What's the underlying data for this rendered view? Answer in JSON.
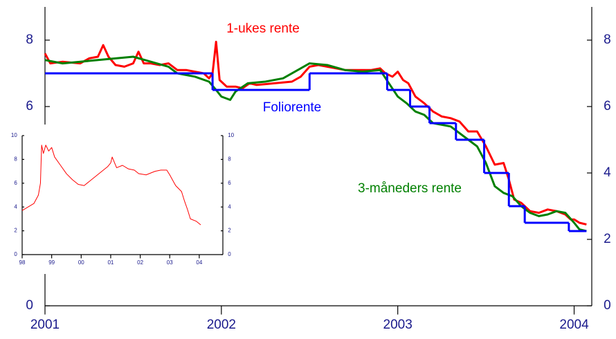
{
  "chart_data": [
    {
      "type": "line",
      "xlim": [
        2001,
        2004.1
      ],
      "ylim": [
        0,
        9
      ],
      "xticks": [
        2001,
        2002,
        2003,
        2004
      ],
      "yticks": [
        0,
        2,
        4,
        6,
        8
      ],
      "right_axis": true,
      "series": [
        {
          "name": "1-ukes rente",
          "color": "#ff0000",
          "x": [
            2001.0,
            2001.03,
            2001.1,
            2001.2,
            2001.25,
            2001.3,
            2001.33,
            2001.36,
            2001.4,
            2001.45,
            2001.5,
            2001.53,
            2001.56,
            2001.6,
            2001.65,
            2001.7,
            2001.75,
            2001.8,
            2001.85,
            2001.9,
            2001.93,
            2001.95,
            2001.97,
            2001.99,
            2002.03,
            2002.08,
            2002.12,
            2002.16,
            2002.2,
            2002.3,
            2002.4,
            2002.45,
            2002.5,
            2002.55,
            2002.6,
            2002.7,
            2002.8,
            2002.85,
            2002.9,
            2002.93,
            2002.97,
            2003.0,
            2003.03,
            2003.06,
            2003.1,
            2003.15,
            2003.2,
            2003.25,
            2003.3,
            2003.35,
            2003.4,
            2003.45,
            2003.5,
            2003.55,
            2003.6,
            2003.63,
            2003.66,
            2003.7,
            2003.75,
            2003.8,
            2003.85,
            2003.9,
            2003.95,
            2003.98,
            2004.0,
            2004.03,
            2004.07
          ],
          "values": [
            7.6,
            7.3,
            7.35,
            7.3,
            7.45,
            7.5,
            7.85,
            7.5,
            7.25,
            7.2,
            7.3,
            7.65,
            7.3,
            7.3,
            7.25,
            7.3,
            7.1,
            7.1,
            7.05,
            7.0,
            6.85,
            7.0,
            7.95,
            6.8,
            6.6,
            6.6,
            6.55,
            6.7,
            6.65,
            6.7,
            6.75,
            6.9,
            7.2,
            7.25,
            7.2,
            7.1,
            7.1,
            7.1,
            7.15,
            7.0,
            6.9,
            7.05,
            6.8,
            6.7,
            6.3,
            6.1,
            5.85,
            5.7,
            5.65,
            5.55,
            5.25,
            5.25,
            4.8,
            4.25,
            4.3,
            3.8,
            3.2,
            3.1,
            2.85,
            2.8,
            2.9,
            2.85,
            2.75,
            2.6,
            2.6,
            2.5,
            2.45
          ]
        },
        {
          "name": "Foliorente",
          "color": "#0000ff",
          "step": true,
          "x_end": 2004.07,
          "x": [
            2001.0,
            2001.95,
            2002.5,
            2002.94,
            2003.07,
            2003.18,
            2003.33,
            2003.49,
            2003.63,
            2003.72,
            2003.97
          ],
          "values": [
            7,
            6.5,
            7,
            6.5,
            6,
            5.5,
            5,
            4,
            3,
            2.5,
            2.25
          ]
        },
        {
          "name": "3-måneders rente",
          "color": "#008000",
          "x": [
            2001.0,
            2001.1,
            2001.2,
            2001.3,
            2001.4,
            2001.5,
            2001.6,
            2001.7,
            2001.75,
            2001.8,
            2001.85,
            2001.93,
            2001.97,
            2002.0,
            2002.05,
            2002.08,
            2002.15,
            2002.25,
            2002.35,
            2002.45,
            2002.5,
            2002.6,
            2002.7,
            2002.8,
            2002.9,
            2002.95,
            2003.0,
            2003.05,
            2003.1,
            2003.15,
            2003.2,
            2003.3,
            2003.4,
            2003.45,
            2003.5,
            2003.55,
            2003.6,
            2003.65,
            2003.7,
            2003.75,
            2003.8,
            2003.85,
            2003.9,
            2003.95,
            2004.0,
            2004.03,
            2004.07
          ],
          "values": [
            7.4,
            7.3,
            7.35,
            7.4,
            7.45,
            7.5,
            7.35,
            7.2,
            7.0,
            6.95,
            6.9,
            6.75,
            6.5,
            6.3,
            6.2,
            6.45,
            6.7,
            6.75,
            6.85,
            7.15,
            7.3,
            7.25,
            7.1,
            7.05,
            7.1,
            6.7,
            6.3,
            6.1,
            5.85,
            5.75,
            5.5,
            5.4,
            5.0,
            4.8,
            4.3,
            3.6,
            3.4,
            3.3,
            3.0,
            2.8,
            2.7,
            2.75,
            2.85,
            2.8,
            2.5,
            2.3,
            2.25
          ]
        }
      ]
    },
    {
      "type": "line",
      "xlim": [
        1998,
        2004.8
      ],
      "ylim": [
        0,
        10
      ],
      "xticks": [
        {
          "value": 1998,
          "label": "98"
        },
        {
          "value": 1999,
          "label": "99"
        },
        {
          "value": 2000,
          "label": "00"
        },
        {
          "value": 2001,
          "label": "01"
        },
        {
          "value": 2002,
          "label": "02"
        },
        {
          "value": 2003,
          "label": "03"
        },
        {
          "value": 2004,
          "label": "04"
        }
      ],
      "yticks": [
        0,
        2,
        4,
        6,
        8,
        10
      ],
      "right_axis": true,
      "series": [
        {
          "color": "#ff0000",
          "x": [
            1998.0,
            1998.2,
            1998.4,
            1998.55,
            1998.62,
            1998.66,
            1998.72,
            1998.8,
            1998.9,
            1999.0,
            1999.1,
            1999.3,
            1999.5,
            1999.7,
            1999.9,
            2000.1,
            2000.3,
            2000.5,
            2000.7,
            2000.9,
            2001.0,
            2001.05,
            2001.2,
            2001.4,
            2001.6,
            2001.8,
            2001.95,
            2002.2,
            2002.5,
            2002.7,
            2002.9,
            2003.0,
            2003.2,
            2003.4,
            2003.5,
            2003.6,
            2003.7,
            2003.9,
            2004.05
          ],
          "values": [
            3.7,
            4.0,
            4.3,
            5.0,
            6.0,
            9.2,
            8.5,
            9.2,
            8.7,
            9.0,
            8.2,
            7.5,
            6.8,
            6.3,
            5.9,
            5.8,
            6.2,
            6.6,
            7.0,
            7.4,
            7.7,
            8.2,
            7.3,
            7.5,
            7.2,
            7.1,
            6.8,
            6.7,
            7.0,
            7.1,
            7.1,
            6.7,
            5.8,
            5.3,
            4.5,
            3.8,
            3.0,
            2.8,
            2.5
          ]
        }
      ]
    }
  ]
}
